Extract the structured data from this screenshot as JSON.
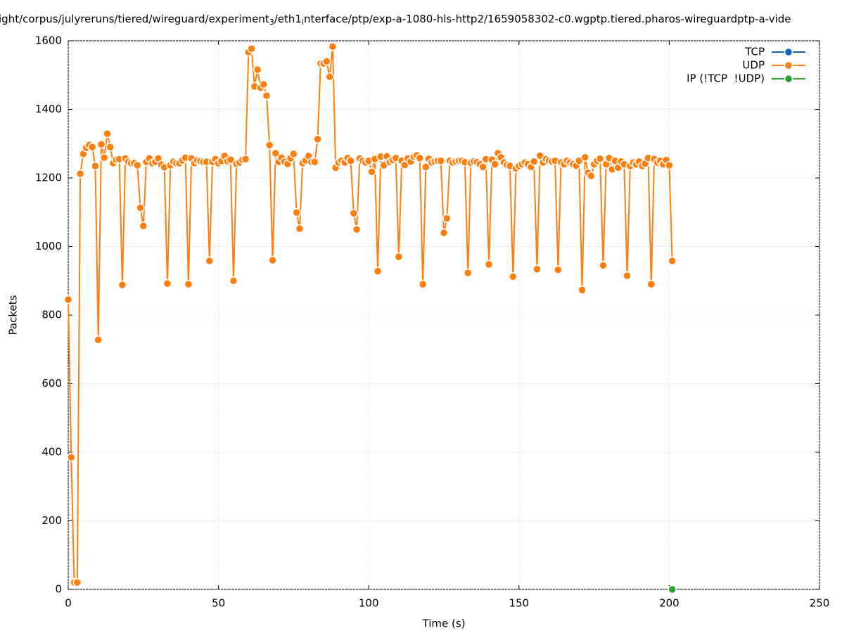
{
  "chart_data": {
    "type": "line",
    "title": [
      "ight/corpus/julyreruns/tiered/wireguard/experiment",
      "3",
      "/eth1",
      "i",
      "nterface/ptp/exp-a-1080-hls-http2/1659058302-c0.wgptp.tiered.pharos-wireguardptp-a-vide"
    ],
    "xlabel": "Time (s)",
    "ylabel": "Packets",
    "xlim": [
      0,
      250
    ],
    "ylim": [
      0,
      1600
    ],
    "xticks": [
      0,
      50,
      100,
      150,
      200,
      250
    ],
    "yticks": [
      0,
      200,
      400,
      600,
      800,
      1000,
      1200,
      1400,
      1600
    ],
    "grid": true,
    "legend": "top-right",
    "series": [
      {
        "name": "TCP",
        "color": "#1565b0",
        "x": [],
        "values": []
      },
      {
        "name": "UDP",
        "color": "#ff7f0e",
        "x": [
          0,
          1,
          2,
          3,
          4,
          5,
          6,
          7,
          8,
          9,
          10,
          11,
          12,
          13,
          14,
          15,
          16,
          17,
          18,
          19,
          20,
          21,
          22,
          23,
          24,
          25,
          26,
          27,
          28,
          29,
          30,
          31,
          32,
          33,
          34,
          35,
          36,
          37,
          38,
          39,
          40,
          41,
          42,
          43,
          44,
          45,
          46,
          47,
          48,
          49,
          50,
          51,
          52,
          53,
          54,
          55,
          56,
          57,
          58,
          59,
          60,
          61,
          62,
          63,
          64,
          65,
          66,
          67,
          68,
          69,
          70,
          71,
          72,
          73,
          74,
          75,
          76,
          77,
          78,
          79,
          80,
          81,
          82,
          83,
          84,
          85,
          86,
          87,
          88,
          89,
          90,
          91,
          92,
          93,
          94,
          95,
          96,
          97,
          98,
          99,
          100,
          101,
          102,
          103,
          104,
          105,
          106,
          107,
          108,
          109,
          110,
          111,
          112,
          113,
          114,
          115,
          116,
          117,
          118,
          119,
          120,
          121,
          122,
          123,
          124,
          125,
          126,
          127,
          128,
          129,
          130,
          131,
          132,
          133,
          134,
          135,
          136,
          137,
          138,
          139,
          140,
          141,
          142,
          143,
          144,
          145,
          146,
          147,
          148,
          149,
          150,
          151,
          152,
          153,
          154,
          155,
          156,
          157,
          158,
          159,
          160,
          161,
          162,
          163,
          164,
          165,
          166,
          167,
          168,
          169,
          170,
          171,
          172,
          173,
          174,
          175,
          176,
          177,
          178,
          179,
          180,
          181,
          182,
          183,
          184,
          185,
          186,
          187,
          188,
          189,
          190,
          191,
          192,
          193,
          194,
          195,
          196,
          197,
          198,
          199,
          200,
          201
        ],
        "values": [
          845,
          385,
          20,
          20,
          1212,
          1270,
          1288,
          1296,
          1290,
          1235,
          728,
          1298,
          1259,
          1329,
          1290,
          1243,
          1253,
          1255,
          888,
          1257,
          1247,
          1243,
          1243,
          1237,
          1113,
          1060,
          1247,
          1257,
          1243,
          1247,
          1257,
          1239,
          1231,
          892,
          1237,
          1247,
          1243,
          1243,
          1251,
          1259,
          890,
          1257,
          1243,
          1251,
          1249,
          1247,
          1247,
          958,
          1247,
          1255,
          1243,
          1249,
          1264,
          1249,
          1253,
          900,
          1241,
          1245,
          1253,
          1255,
          1567,
          1577,
          1467,
          1516,
          1463,
          1473,
          1440,
          1296,
          960,
          1272,
          1247,
          1259,
          1247,
          1241,
          1257,
          1270,
          1099,
          1052,
          1243,
          1251,
          1264,
          1247,
          1247,
          1313,
          1534,
          1534,
          1540,
          1495,
          1583,
          1230,
          1245,
          1250,
          1245,
          1258,
          1250,
          1097,
          1050,
          1257,
          1250,
          1245,
          1250,
          1218,
          1255,
          928,
          1262,
          1237,
          1263,
          1247,
          1252,
          1258,
          970,
          1250,
          1238,
          1257,
          1248,
          1262,
          1266,
          1258,
          890,
          1232,
          1256,
          1245,
          1248,
          1250,
          1250,
          1040,
          1082,
          1250,
          1245,
          1248,
          1250,
          1250,
          1246,
          923,
          1244,
          1248,
          1246,
          1240,
          1232,
          1255,
          948,
          1253,
          1240,
          1272,
          1260,
          1245,
          1238,
          1235,
          912,
          1228,
          1235,
          1240,
          1245,
          1240,
          1232,
          1248,
          934,
          1265,
          1245,
          1255,
          1250,
          1248,
          1250,
          932,
          1245,
          1240,
          1250,
          1245,
          1240,
          1236,
          1250,
          873,
          1260,
          1215,
          1206,
          1240,
          1250,
          1256,
          945,
          1240,
          1258,
          1225,
          1250,
          1230,
          1248,
          1240,
          915,
          1235,
          1245,
          1240,
          1248,
          1235,
          1242,
          1258,
          890,
          1255,
          1245,
          1250,
          1240,
          1252,
          1237,
          958
        ]
      },
      {
        "name": "IP (!TCP  !UDP)",
        "color": "#2ca02c",
        "x": [
          201
        ],
        "values": [
          0
        ]
      }
    ]
  }
}
